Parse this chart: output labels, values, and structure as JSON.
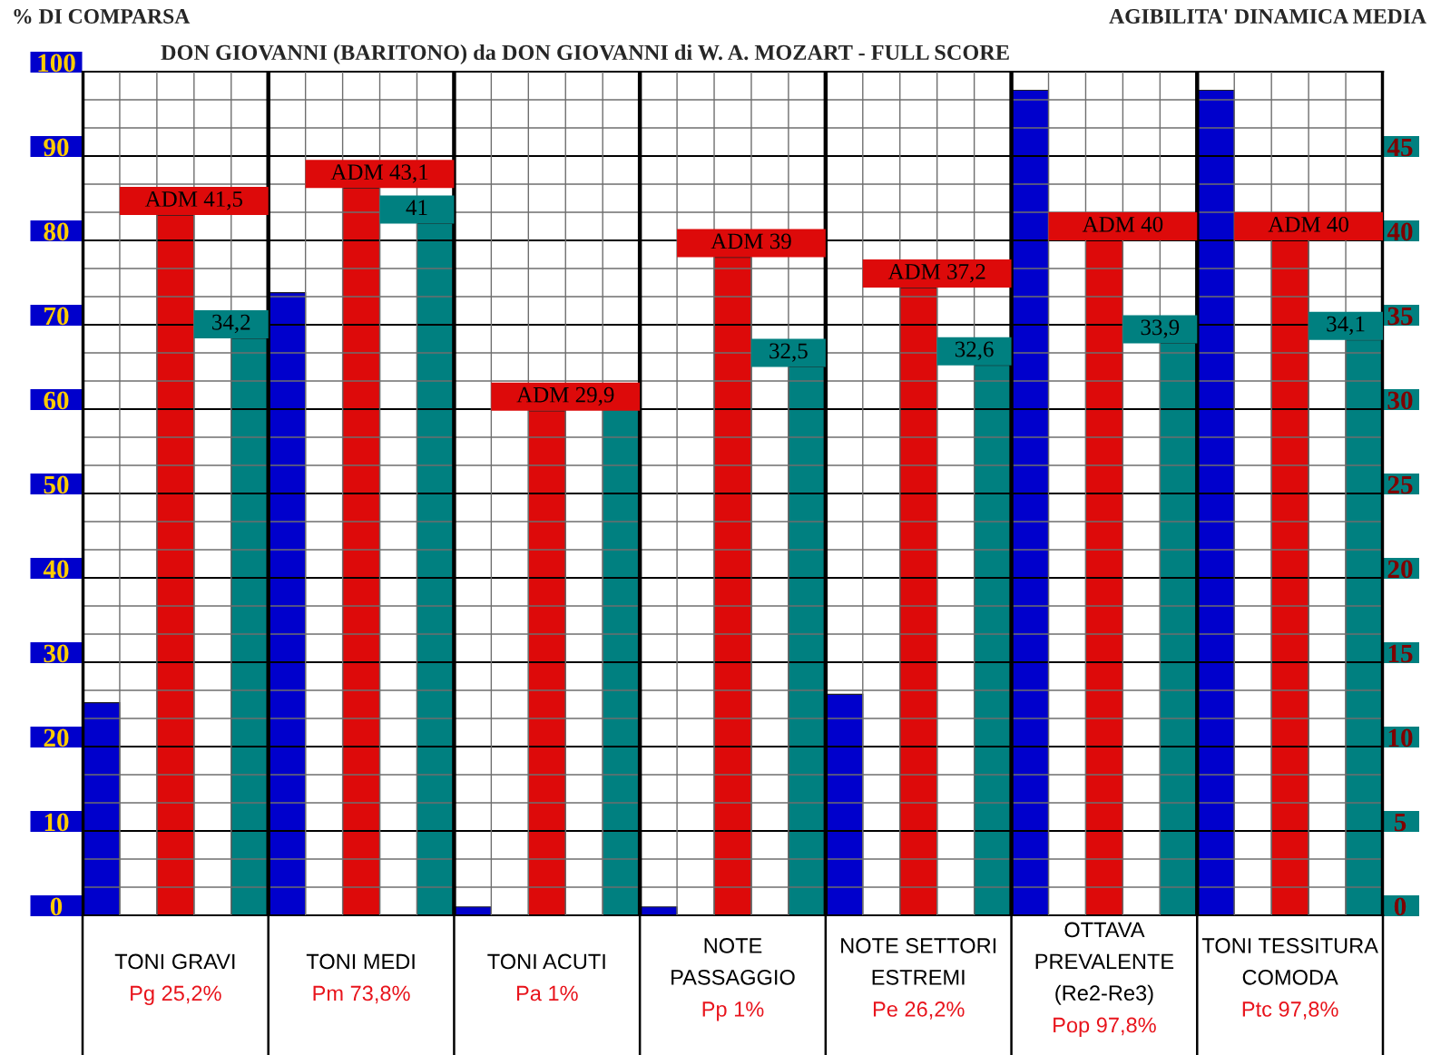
{
  "chart_data": {
    "type": "bar",
    "title": "DON GIOVANNI (BARITONO) da DON GIOVANNI di W. A. MOZART - FULL SCORE",
    "ylabel": "% DI COMPARSA",
    "y2label": "AGIBILITA' DINAMICA MEDIA",
    "categories": [
      "TONI GRAVI\nPg 25,2%",
      "TONI MEDI\nPm 73,8%",
      "TONI ACUTI\nPa 1%",
      "NOTE\nPASSAGGIO\nPp 1%",
      "NOTE SETTORI\nESTREMI\nPe 26,2%",
      "OTTAVA\nPREVALENTE\n(Re2-Re3)\nPop 97,8%",
      "TONI TESSITURA\nCOMODA\nPtc 97,8%"
    ],
    "series": [
      {
        "color": "#0000cc",
        "values": [
          25.2,
          73.8,
          1,
          1,
          26.2,
          97.8,
          97.8
        ]
      },
      {
        "color": "#dd0a0a",
        "axis": "y2",
        "values": [
          41.5,
          43.1,
          29.9,
          39,
          37.2,
          40,
          40
        ],
        "value_labels": [
          "ADM 41,5",
          "ADM 43,1",
          "ADM 29,9",
          "ADM 39",
          "ADM 37,2",
          "ADM 40",
          "ADM 40"
        ]
      },
      {
        "color": "#008080",
        "axis": "y2",
        "values": [
          34.2,
          41,
          30,
          32.5,
          32.6,
          33.9,
          34.1
        ],
        "value_labels": [
          "34,2",
          "41",
          null,
          "32,5",
          "32,6",
          "33,9",
          "34,1"
        ]
      }
    ],
    "ylim": [
      0,
      100
    ],
    "yticks": [
      0,
      {
        "value": 3.33,
        "label": null
      },
      {
        "value": 6.67,
        "label": null
      },
      10,
      {
        "value": 13.33,
        "label": null
      },
      {
        "value": 16.67,
        "label": null
      },
      20,
      {
        "value": 23.33,
        "label": null
      },
      {
        "value": 26.67,
        "label": null
      },
      30,
      {
        "value": 33.33,
        "label": null
      },
      {
        "value": 36.67,
        "label": null
      },
      40,
      {
        "value": 43.33,
        "label": null
      },
      {
        "value": 46.67,
        "label": null
      },
      50,
      {
        "value": 53.33,
        "label": null
      },
      {
        "value": 56.67,
        "label": null
      },
      60,
      {
        "value": 63.33,
        "label": null
      },
      {
        "value": 66.67,
        "label": null
      },
      70,
      {
        "value": 73.33,
        "label": null
      },
      {
        "value": 76.67,
        "label": null
      },
      80,
      {
        "value": 83.33,
        "label": null
      },
      {
        "value": 86.67,
        "label": null
      },
      90,
      {
        "value": 93.33,
        "label": null
      },
      {
        "value": 96.67,
        "label": null
      },
      100
    ],
    "y2lim": [
      0,
      50
    ],
    "y2ticks": [
      0,
      5,
      10,
      15,
      20,
      25,
      30,
      35,
      40,
      45
    ],
    "grid": true
  }
}
